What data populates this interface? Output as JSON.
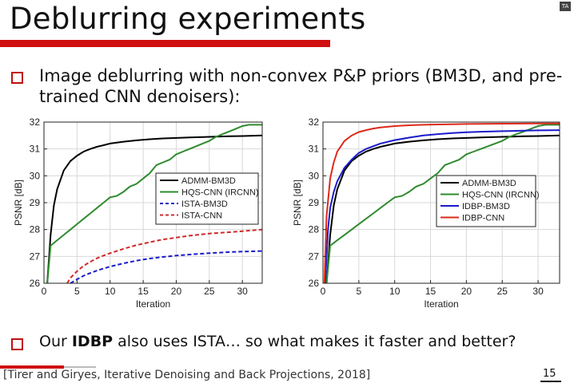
{
  "slide": {
    "title": "Deblurring experiments",
    "bullet1": "Image deblurring with non-convex P&P priors (BM3D, and pre-trained CNN denoisers):",
    "bullet2_pre": "Our ",
    "bullet2_bold": "IDBP",
    "bullet2_post": " also uses ISTA… so what makes it faster and better?",
    "footer": "[Tirer and Giryes, Iterative Denoising and Back Projections, 2018]",
    "page_number": "15",
    "corner_logo": "TA"
  },
  "chart_data": [
    {
      "type": "line",
      "title": "",
      "xlabel": "Iteration",
      "ylabel": "PSNR [dB]",
      "xlim": [
        0,
        33
      ],
      "ylim": [
        26,
        32
      ],
      "xticks": [
        "0",
        "5",
        "10",
        "15",
        "20",
        "25",
        "30"
      ],
      "yticks": [
        "26",
        "27",
        "28",
        "29",
        "30",
        "31",
        "32"
      ],
      "grid": true,
      "legend": "center-right",
      "series": [
        {
          "name": "ADMM-BM3D",
          "color": "#000000",
          "dash": "solid",
          "x": [
            0.5,
            1,
            1.5,
            2,
            3,
            4,
            5,
            6,
            7,
            8,
            9,
            10,
            12,
            14,
            16,
            18,
            20,
            22,
            25,
            28,
            30,
            33
          ],
          "y": [
            26.0,
            27.8,
            28.9,
            29.5,
            30.2,
            30.55,
            30.75,
            30.9,
            31.0,
            31.08,
            31.14,
            31.2,
            31.27,
            31.32,
            31.36,
            31.39,
            31.41,
            31.43,
            31.45,
            31.47,
            31.48,
            31.5
          ]
        },
        {
          "name": "HQS-CNN (IRCNN)",
          "color": "#2e8b2e",
          "dash": "solid",
          "x": [
            0.5,
            1,
            2,
            3,
            4,
            5,
            6,
            7,
            8,
            9,
            10,
            11,
            12,
            13,
            14,
            15,
            16,
            17,
            18,
            19,
            20,
            21,
            22,
            23,
            24,
            25,
            26,
            27,
            28,
            29,
            30,
            31,
            32,
            33
          ],
          "y": [
            26.0,
            27.4,
            27.6,
            27.8,
            28.0,
            28.2,
            28.4,
            28.6,
            28.8,
            29.0,
            29.2,
            29.25,
            29.4,
            29.6,
            29.7,
            29.9,
            30.1,
            30.4,
            30.5,
            30.6,
            30.8,
            30.9,
            31.0,
            31.1,
            31.2,
            31.3,
            31.45,
            31.55,
            31.65,
            31.75,
            31.85,
            31.9,
            31.9,
            31.9
          ]
        },
        {
          "name": "ISTA-BM3D",
          "color": "#1a1acc",
          "dash": "dashed",
          "x": [
            4,
            5,
            6,
            7,
            8,
            9,
            10,
            12,
            14,
            16,
            18,
            20,
            22,
            25,
            28,
            30,
            33
          ],
          "y": [
            26.0,
            26.15,
            26.28,
            26.38,
            26.47,
            26.55,
            26.62,
            26.74,
            26.84,
            26.92,
            26.98,
            27.03,
            27.07,
            27.12,
            27.16,
            27.18,
            27.2
          ]
        },
        {
          "name": "ISTA-CNN",
          "color": "#d02a2a",
          "dash": "dashed",
          "x": [
            3.5,
            4,
            5,
            6,
            7,
            8,
            9,
            10,
            12,
            14,
            16,
            18,
            20,
            22,
            25,
            28,
            30,
            33
          ],
          "y": [
            26.0,
            26.2,
            26.45,
            26.65,
            26.8,
            26.93,
            27.03,
            27.12,
            27.28,
            27.42,
            27.53,
            27.63,
            27.7,
            27.77,
            27.85,
            27.9,
            27.94,
            28.0
          ]
        }
      ]
    },
    {
      "type": "line",
      "title": "",
      "xlabel": "Iteration",
      "ylabel": "PSNR [dB]",
      "xlim": [
        0,
        33
      ],
      "ylim": [
        26,
        32
      ],
      "xticks": [
        "0",
        "5",
        "10",
        "15",
        "20",
        "25",
        "30"
      ],
      "yticks": [
        "26",
        "27",
        "28",
        "29",
        "30",
        "31",
        "32"
      ],
      "grid": true,
      "legend": "center-right",
      "series": [
        {
          "name": "ADMM-BM3D",
          "color": "#000000",
          "dash": "solid",
          "x": [
            0.5,
            1,
            1.5,
            2,
            3,
            4,
            5,
            6,
            7,
            8,
            9,
            10,
            12,
            14,
            16,
            18,
            20,
            22,
            25,
            28,
            30,
            33
          ],
          "y": [
            26.0,
            27.8,
            28.9,
            29.5,
            30.2,
            30.55,
            30.75,
            30.9,
            31.0,
            31.08,
            31.14,
            31.2,
            31.27,
            31.32,
            31.36,
            31.39,
            31.41,
            31.43,
            31.45,
            31.47,
            31.48,
            31.5
          ]
        },
        {
          "name": "HQS-CNN (IRCNN)",
          "color": "#2e8b2e",
          "dash": "solid",
          "x": [
            0.5,
            1,
            2,
            3,
            4,
            5,
            6,
            7,
            8,
            9,
            10,
            11,
            12,
            13,
            14,
            15,
            16,
            17,
            18,
            19,
            20,
            21,
            22,
            23,
            24,
            25,
            26,
            27,
            28,
            29,
            30,
            31,
            32,
            33
          ],
          "y": [
            26.0,
            27.4,
            27.6,
            27.8,
            28.0,
            28.2,
            28.4,
            28.6,
            28.8,
            29.0,
            29.2,
            29.25,
            29.4,
            29.6,
            29.7,
            29.9,
            30.1,
            30.4,
            30.5,
            30.6,
            30.8,
            30.9,
            31.0,
            31.1,
            31.2,
            31.3,
            31.45,
            31.55,
            31.65,
            31.75,
            31.85,
            31.9,
            31.9,
            31.9
          ]
        },
        {
          "name": "IDBP-BM3D",
          "color": "#1a1acc",
          "dash": "solid",
          "x": [
            0.3,
            0.7,
            1,
            1.5,
            2,
            3,
            4,
            5,
            6,
            7,
            8,
            10,
            12,
            14,
            16,
            18,
            20,
            22,
            25,
            28,
            30,
            33
          ],
          "y": [
            26.0,
            28.0,
            28.8,
            29.4,
            29.8,
            30.3,
            30.6,
            30.85,
            31.0,
            31.1,
            31.2,
            31.33,
            31.42,
            31.5,
            31.55,
            31.59,
            31.62,
            31.64,
            31.66,
            31.68,
            31.69,
            31.7
          ]
        },
        {
          "name": "IDBP-CNN",
          "color": "#dd2a1a",
          "dash": "solid",
          "x": [
            0.2,
            0.5,
            1,
            1.5,
            2,
            3,
            4,
            5,
            6,
            7,
            8,
            10,
            12,
            14,
            16,
            18,
            20,
            25,
            30,
            33
          ],
          "y": [
            26.0,
            28.5,
            29.9,
            30.5,
            30.9,
            31.3,
            31.5,
            31.63,
            31.7,
            31.76,
            31.8,
            31.85,
            31.88,
            31.9,
            31.91,
            31.92,
            31.93,
            31.94,
            31.95,
            31.95
          ]
        }
      ]
    }
  ]
}
